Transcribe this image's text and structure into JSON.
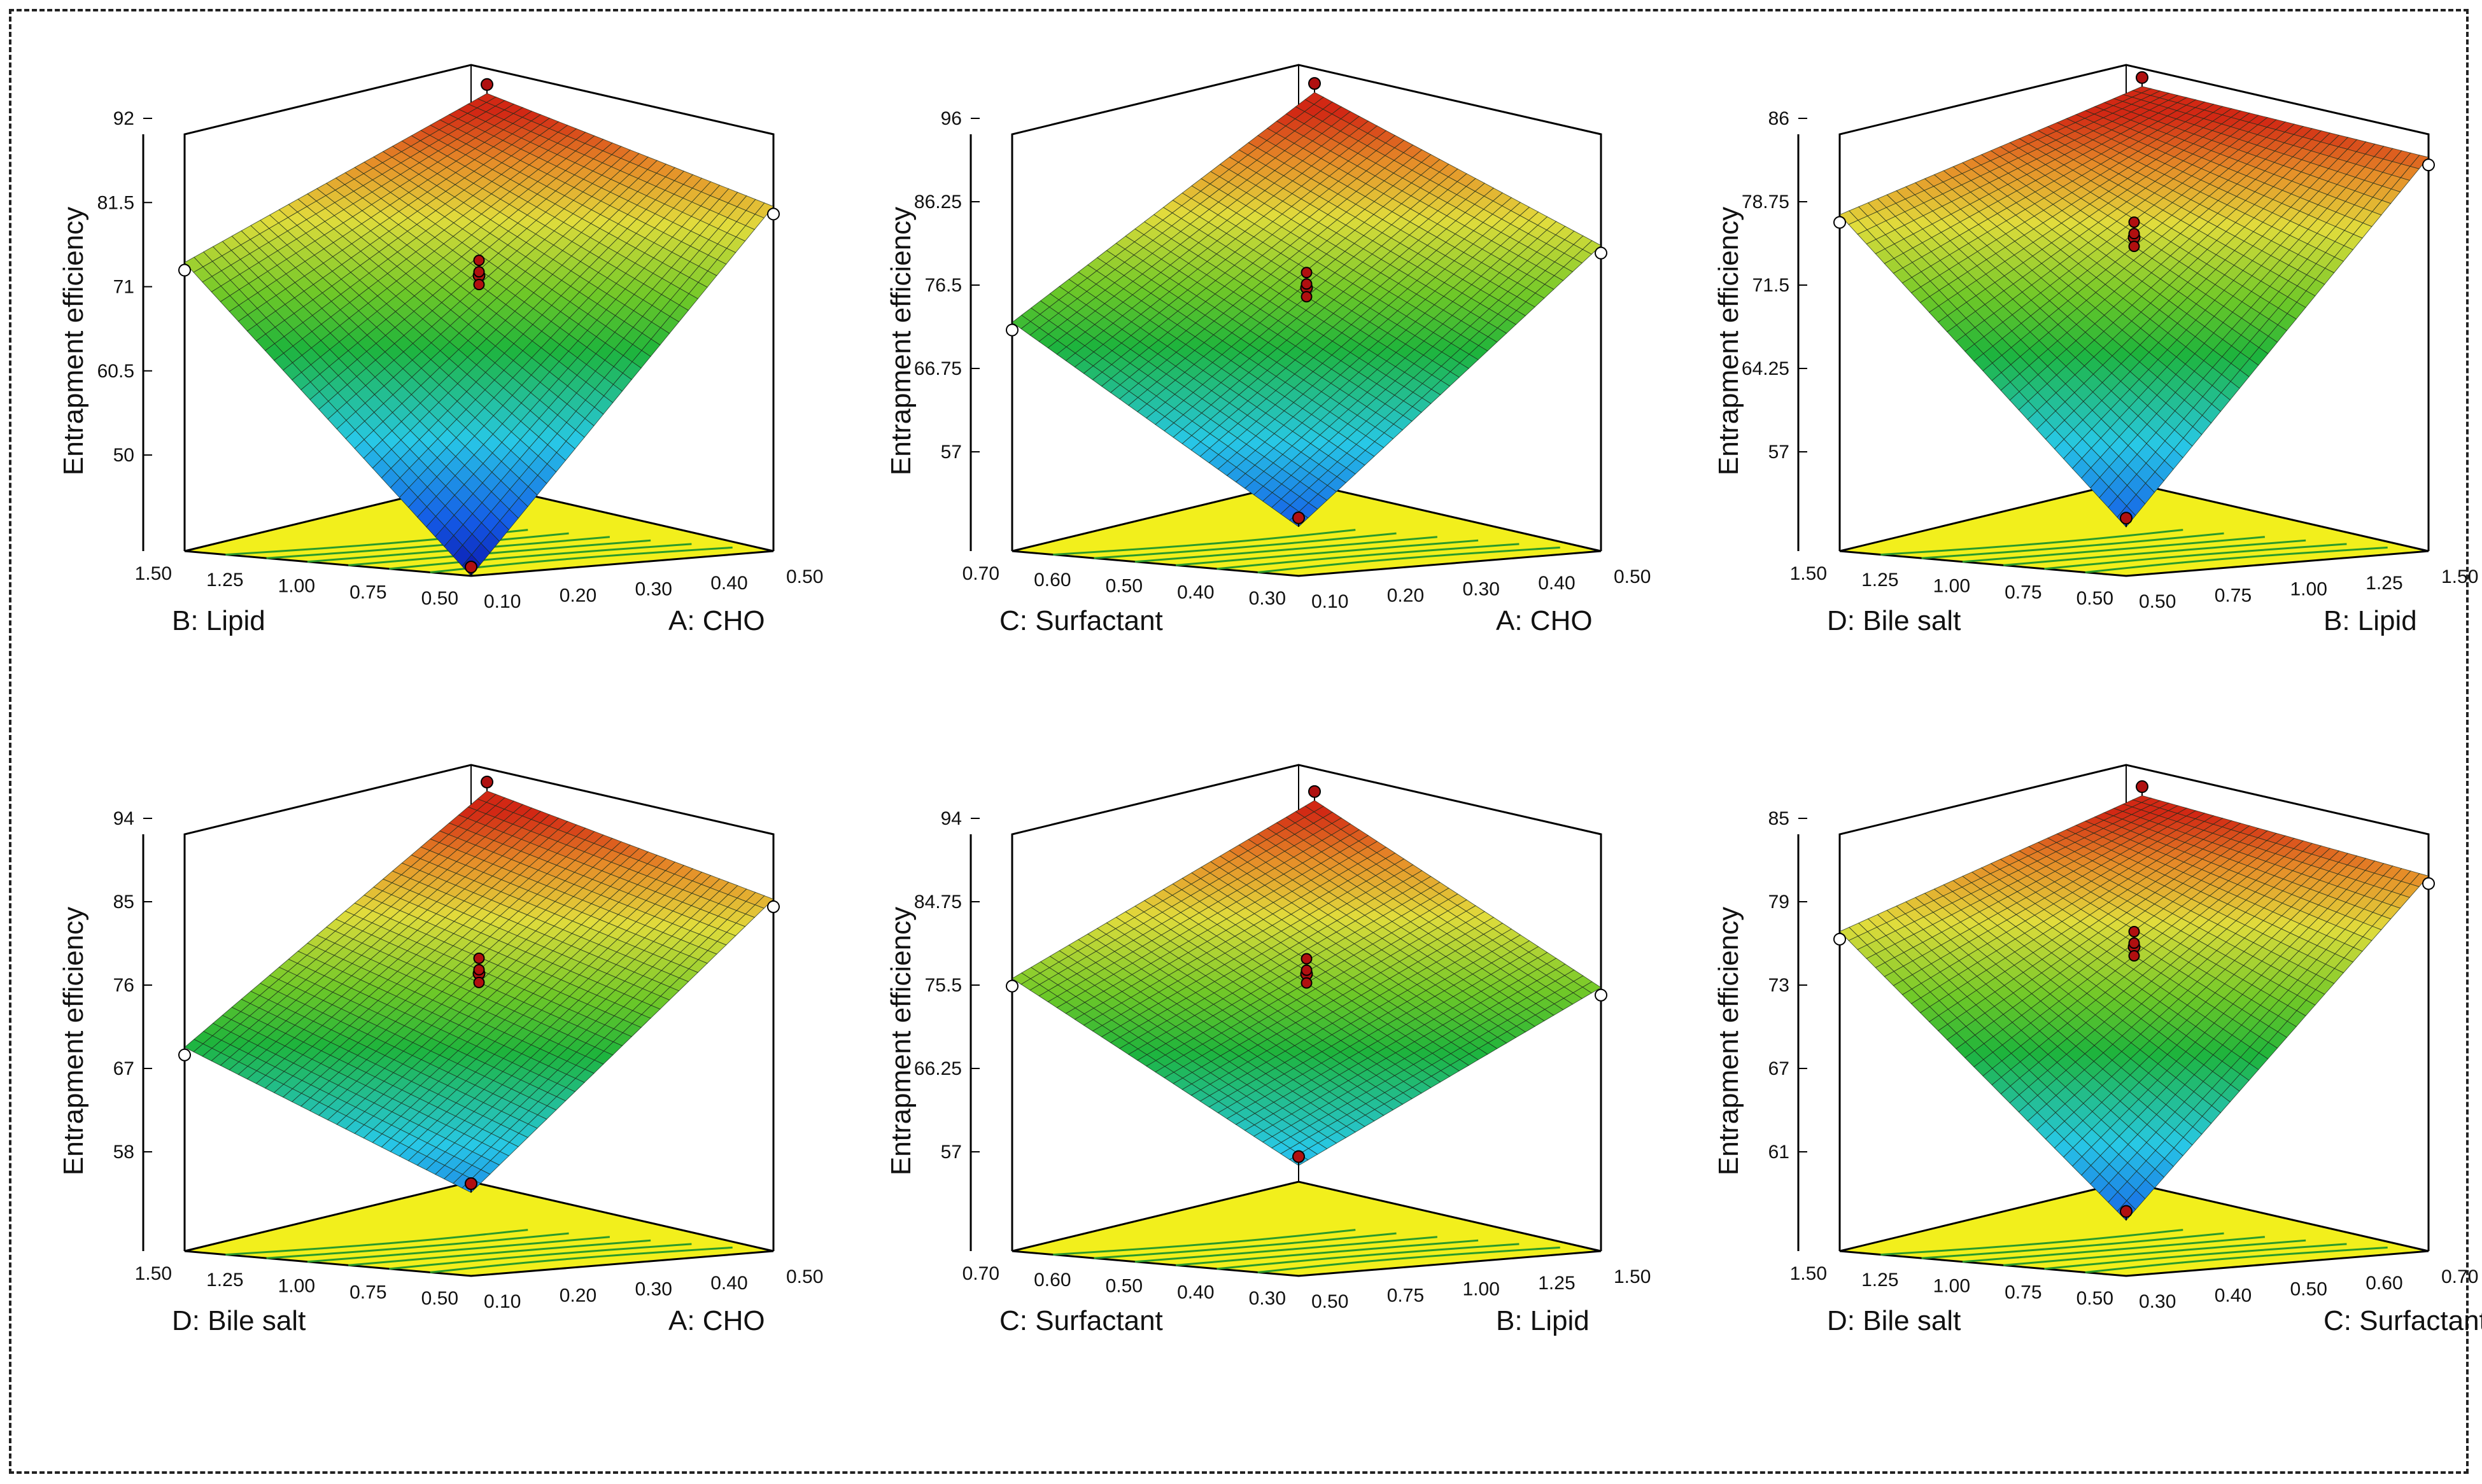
{
  "chart_data": [
    {
      "type": "surface3d",
      "title": "",
      "zlabel": "Entrapment efficiency",
      "zticks": [
        "92",
        "81.5",
        "71",
        "60.5",
        "50"
      ],
      "zlim": [
        40,
        92
      ],
      "xlabel": "A: CHO",
      "xticks": [
        "0.10",
        "0.20",
        "0.30",
        "0.40",
        "0.50"
      ],
      "ylabel": "B: Lipid",
      "yticks": [
        "0.50",
        "0.75",
        "1.00",
        "1.25",
        "1.50"
      ],
      "corner_values": {
        "front": 40,
        "right": 83,
        "back": 94,
        "left": 76
      }
    },
    {
      "type": "surface3d",
      "title": "",
      "zlabel": "Entrapment efficiency",
      "zticks": [
        "96",
        "86.25",
        "76.5",
        "66.75",
        "57"
      ],
      "zlim": [
        47.25,
        96
      ],
      "xlabel": "A: CHO",
      "xticks": [
        "0.10",
        "0.20",
        "0.30",
        "0.40",
        "0.50"
      ],
      "ylabel": "C: Surfactant",
      "yticks": [
        "0.30",
        "0.40",
        "0.50",
        "0.60",
        "0.70"
      ],
      "corner_values": {
        "front": 53,
        "right": 83,
        "back": 98,
        "left": 74
      }
    },
    {
      "type": "surface3d",
      "title": "",
      "zlabel": "Entrapment efficiency",
      "zticks": [
        "86",
        "78.75",
        "71.5",
        "64.25",
        "57"
      ],
      "zlim": [
        49.75,
        86
      ],
      "xlabel": "B: Lipid",
      "xticks": [
        "0.50",
        "0.75",
        "1.00",
        "1.25",
        "1.50"
      ],
      "ylabel": "D: Bile salt",
      "yticks": [
        "0.50",
        "0.75",
        "1.00",
        "1.25",
        "1.50"
      ],
      "corner_values": {
        "front": 54,
        "right": 84,
        "back": 88,
        "left": 79
      }
    },
    {
      "type": "surface3d",
      "title": "",
      "zlabel": "Entrapment efficiency",
      "zticks": [
        "94",
        "85",
        "76",
        "67",
        "58"
      ],
      "zlim": [
        49,
        94
      ],
      "xlabel": "A: CHO",
      "xticks": [
        "0.10",
        "0.20",
        "0.30",
        "0.40",
        "0.50"
      ],
      "ylabel": "D: Bile salt",
      "yticks": [
        "0.50",
        "0.75",
        "1.00",
        "1.25",
        "1.50"
      ],
      "corner_values": {
        "front": 58,
        "right": 87,
        "back": 96,
        "left": 71
      }
    },
    {
      "type": "surface3d",
      "title": "",
      "zlabel": "Entrapment efficiency",
      "zticks": [
        "94",
        "84.75",
        "75.5",
        "66.25",
        "57"
      ],
      "zlim": [
        47.75,
        94
      ],
      "xlabel": "B: Lipid",
      "xticks": [
        "0.50",
        "0.75",
        "1.00",
        "1.25",
        "1.50"
      ],
      "ylabel": "C: Surfactant",
      "yticks": [
        "0.30",
        "0.40",
        "0.50",
        "0.60",
        "0.70"
      ],
      "corner_values": {
        "front": 60,
        "right": 77,
        "back": 95,
        "left": 78
      }
    },
    {
      "type": "surface3d",
      "title": "",
      "zlabel": "Entrapment efficiency",
      "zticks": [
        "85",
        "79",
        "73",
        "67",
        "61"
      ],
      "zlim": [
        55,
        85
      ],
      "xlabel": "C: Surfactant",
      "xticks": [
        "0.30",
        "0.40",
        "0.50",
        "0.60",
        "0.70"
      ],
      "ylabel": "D: Bile salt",
      "yticks": [
        "0.50",
        "0.75",
        "1.00",
        "1.25",
        "1.50"
      ],
      "corner_values": {
        "front": 59,
        "right": 82,
        "back": 86,
        "left": 78
      }
    }
  ],
  "colors": {
    "floor": "#f2ef1c",
    "floor_contour": "#2a9a2a",
    "mesh_line": "#1a2a1a",
    "design_point": "#b01010",
    "frame_border": "#222222"
  }
}
